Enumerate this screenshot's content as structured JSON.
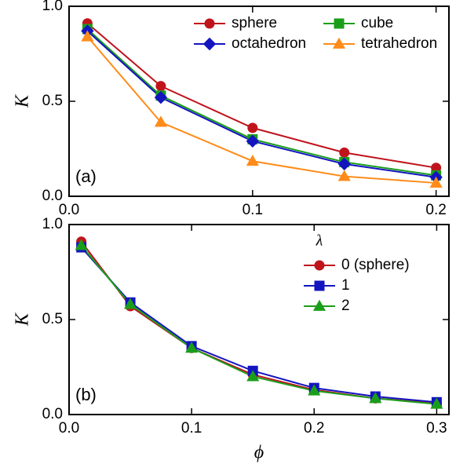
{
  "chart_data": [
    {
      "type": "line",
      "ylabel": "K",
      "annotation": "(a)",
      "x": [
        0.01,
        0.05,
        0.1,
        0.15,
        0.2
      ],
      "xlim": [
        0,
        0.207
      ],
      "xticks": [
        {
          "value": 0,
          "label": "0.0"
        },
        0.1,
        0.2
      ],
      "ylim": [
        0,
        1
      ],
      "yticks": [
        {
          "value": 0,
          "label": "0.0"
        },
        0.5,
        {
          "value": 1,
          "label": "1.0"
        }
      ],
      "legend": "upper right",
      "legend_columns": 2,
      "series": [
        {
          "name": "sphere",
          "color": "#c0141c",
          "marker": "circle",
          "values": [
            0.91,
            0.58,
            0.36,
            0.23,
            0.15
          ]
        },
        {
          "name": "cube",
          "color": "#1a9e1a",
          "marker": "square",
          "values": [
            0.88,
            0.53,
            0.3,
            0.18,
            0.11
          ]
        },
        {
          "name": "octahedron",
          "color": "#1414c0",
          "marker": "diamond",
          "values": [
            0.87,
            0.52,
            0.29,
            0.17,
            0.1
          ]
        },
        {
          "name": "tetrahedron",
          "color": "#ff8c1a",
          "marker": "triangle",
          "values": [
            0.84,
            0.39,
            0.185,
            0.105,
            0.07
          ]
        }
      ]
    },
    {
      "type": "line",
      "ylabel": "K",
      "xlabel": "ϕ",
      "annotation": "(b)",
      "legend_title": "λ",
      "x": [
        0.01,
        0.05,
        0.1,
        0.15,
        0.2,
        0.25,
        0.3
      ],
      "xlim": [
        0,
        0.31
      ],
      "xticks": [
        {
          "value": 0,
          "label": "0.0"
        },
        0.1,
        0.2,
        0.3
      ],
      "ylim": [
        0,
        1
      ],
      "yticks": [
        {
          "value": 0,
          "label": "0.0"
        },
        0.5,
        {
          "value": 1,
          "label": "1.0"
        }
      ],
      "legend": "upper right",
      "legend_columns": 1,
      "series": [
        {
          "name": "0 (sphere)",
          "color": "#c0141c",
          "marker": "circle",
          "values": [
            0.91,
            0.57,
            0.35,
            0.21,
            0.13,
            0.085,
            0.06
          ]
        },
        {
          "name": "1",
          "color": "#1414c0",
          "marker": "square",
          "values": [
            0.88,
            0.59,
            0.36,
            0.23,
            0.14,
            0.095,
            0.065
          ]
        },
        {
          "name": "2",
          "color": "#1a9e1a",
          "marker": "triangle",
          "values": [
            0.89,
            0.58,
            0.35,
            0.2,
            0.125,
            0.085,
            0.055
          ]
        }
      ]
    }
  ]
}
